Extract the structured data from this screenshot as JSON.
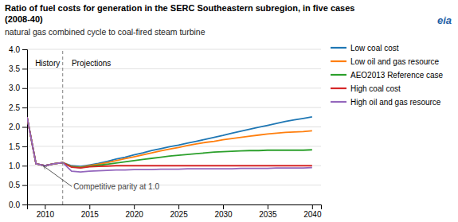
{
  "chart_data": {
    "type": "line",
    "title": [
      "Ratio of fuel costs for generation in the SERC Southeastern subregion, in five cases",
      "(2008-40)"
    ],
    "subtitle": "natural gas combined cycle to coal-fired steam turbine",
    "x": [
      2008,
      2009,
      2010,
      2011,
      2012,
      2013,
      2014,
      2015,
      2016,
      2017,
      2018,
      2019,
      2020,
      2021,
      2022,
      2023,
      2024,
      2025,
      2026,
      2027,
      2028,
      2029,
      2030,
      2031,
      2032,
      2033,
      2034,
      2035,
      2036,
      2037,
      2038,
      2039,
      2040
    ],
    "series": [
      {
        "name": "Low coal cost",
        "values": [
          2.25,
          1.05,
          1.0,
          1.05,
          1.08,
          1.0,
          0.98,
          1.02,
          1.06,
          1.11,
          1.17,
          1.22,
          1.28,
          1.33,
          1.39,
          1.44,
          1.49,
          1.53,
          1.58,
          1.63,
          1.68,
          1.73,
          1.78,
          1.84,
          1.89,
          1.94,
          1.99,
          2.04,
          2.09,
          2.14,
          2.18,
          2.22,
          2.26
        ]
      },
      {
        "name": "Low oil and gas resource",
        "values": [
          2.25,
          1.05,
          1.0,
          1.05,
          1.08,
          0.98,
          0.96,
          1.0,
          1.04,
          1.08,
          1.13,
          1.18,
          1.23,
          1.28,
          1.33,
          1.38,
          1.43,
          1.47,
          1.52,
          1.56,
          1.6,
          1.63,
          1.67,
          1.7,
          1.73,
          1.76,
          1.79,
          1.82,
          1.84,
          1.86,
          1.87,
          1.88,
          1.9
        ]
      },
      {
        "name": "AEO2013 Reference case",
        "values": [
          2.25,
          1.05,
          1.0,
          1.05,
          1.08,
          0.97,
          0.95,
          0.98,
          1.01,
          1.04,
          1.07,
          1.1,
          1.13,
          1.16,
          1.19,
          1.22,
          1.25,
          1.27,
          1.29,
          1.31,
          1.33,
          1.35,
          1.36,
          1.37,
          1.38,
          1.39,
          1.39,
          1.4,
          1.4,
          1.4,
          1.4,
          1.4,
          1.41
        ]
      },
      {
        "name": "High coal cost",
        "values": [
          2.25,
          1.05,
          1.0,
          1.05,
          1.08,
          0.96,
          0.94,
          0.97,
          0.98,
          0.99,
          1.0,
          1.0,
          1.0,
          1.0,
          1.0,
          1.0,
          1.0,
          1.0,
          1.0,
          1.0,
          1.0,
          1.0,
          1.0,
          1.0,
          1.0,
          1.0,
          1.0,
          1.0,
          1.0,
          1.0,
          1.0,
          1.0,
          1.0
        ]
      },
      {
        "name": "High oil and gas resource",
        "values": [
          2.25,
          1.05,
          1.0,
          1.05,
          1.08,
          0.86,
          0.84,
          0.86,
          0.87,
          0.88,
          0.89,
          0.89,
          0.9,
          0.9,
          0.9,
          0.91,
          0.91,
          0.91,
          0.92,
          0.92,
          0.92,
          0.92,
          0.92,
          0.92,
          0.93,
          0.93,
          0.93,
          0.93,
          0.94,
          0.94,
          0.94,
          0.94,
          0.95
        ]
      }
    ],
    "xlim": [
      2008,
      2041
    ],
    "xticks": [
      2010,
      2015,
      2020,
      2025,
      2030,
      2035,
      2040
    ],
    "ylim": [
      0.0,
      4.0
    ],
    "yticks": [
      {
        "value": 0.0,
        "label": "0.0"
      },
      {
        "value": 0.5,
        "label": "0.5"
      },
      {
        "value": 1.0,
        "label": "1.0"
      },
      {
        "value": 1.5,
        "label": "1.5"
      },
      {
        "value": 2.0,
        "label": "2.0"
      },
      {
        "value": 2.5,
        "label": "2.5"
      },
      {
        "value": 3.0,
        "label": "3.0"
      },
      {
        "value": 3.5,
        "label": "3.5"
      },
      {
        "value": 4.0,
        "label": "4.0"
      }
    ],
    "grid": true,
    "legend": "right",
    "vertical_line": {
      "x": 2012,
      "line_style": "dashed"
    },
    "annotations": [
      {
        "text": "History",
        "x": 2010.3,
        "y": 3.65
      },
      {
        "text": "Projections",
        "x": 2013.0,
        "y": 3.65
      },
      {
        "text": "Competitive parity at 1.0",
        "x": 2013.2,
        "y": 0.38,
        "arrow_x": 2009.8,
        "arrow_y": 1.0
      },
      {
        "text": "eia"
      }
    ]
  }
}
